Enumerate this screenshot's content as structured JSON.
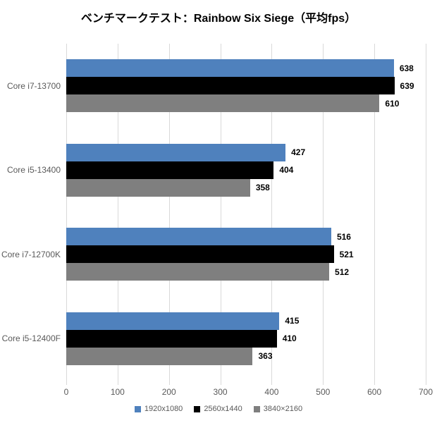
{
  "chart_data": {
    "type": "bar",
    "orientation": "horizontal",
    "title": "ベンチマークテスト：Rainbow Six Siege（平均fps）",
    "categories": [
      "Core i7-13700",
      "Core i5-13400",
      "Core i7-12700K",
      "Core i5-12400F"
    ],
    "series": [
      {
        "name": "1920x1080",
        "color": "#4F81BD",
        "values": [
          638,
          427,
          516,
          415
        ]
      },
      {
        "name": "2560x1440",
        "color": "#000000",
        "values": [
          639,
          404,
          521,
          410
        ]
      },
      {
        "name": "3840×2160",
        "color": "#7F7F7F",
        "values": [
          610,
          358,
          512,
          363
        ]
      }
    ],
    "xlim": [
      0,
      700
    ],
    "xticks": [
      0,
      100,
      200,
      300,
      400,
      500,
      600,
      700
    ],
    "value_labels": true,
    "grid": "vertical",
    "legend_position": "bottom",
    "colors": {
      "gridline": "#d9d9d9",
      "axis_text": "#595959",
      "value_text": "#000000",
      "title_text": "#000000",
      "background": "#ffffff"
    }
  }
}
